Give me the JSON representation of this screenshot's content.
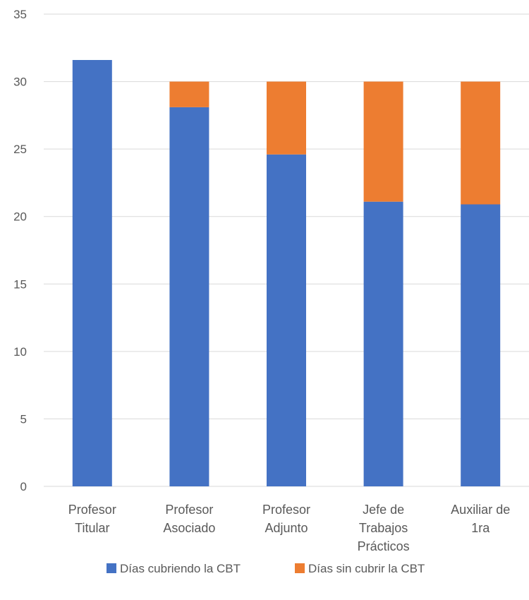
{
  "chart_data": {
    "type": "bar",
    "stacked": true,
    "categories": [
      [
        "Profesor",
        "Titular"
      ],
      [
        "Profesor",
        "Asociado"
      ],
      [
        "Profesor",
        "Adjunto"
      ],
      [
        "Jefe de",
        "Trabajos",
        "Prácticos"
      ],
      [
        "Auxiliar de",
        "1ra"
      ]
    ],
    "series": [
      {
        "name": "Días cubriendo la CBT",
        "color": "#4472C4",
        "values": [
          31.6,
          28.1,
          24.6,
          21.1,
          20.9
        ]
      },
      {
        "name": "Días sin cubrir la CBT",
        "color": "#ED7D31",
        "values": [
          0,
          1.9,
          5.4,
          8.9,
          9.1
        ]
      }
    ],
    "ylim": [
      0,
      35
    ],
    "yticks": [
      0,
      5,
      10,
      15,
      20,
      25,
      30,
      35
    ],
    "grid": true,
    "gridColor": "#d9d9d9",
    "legend": "bottom"
  }
}
